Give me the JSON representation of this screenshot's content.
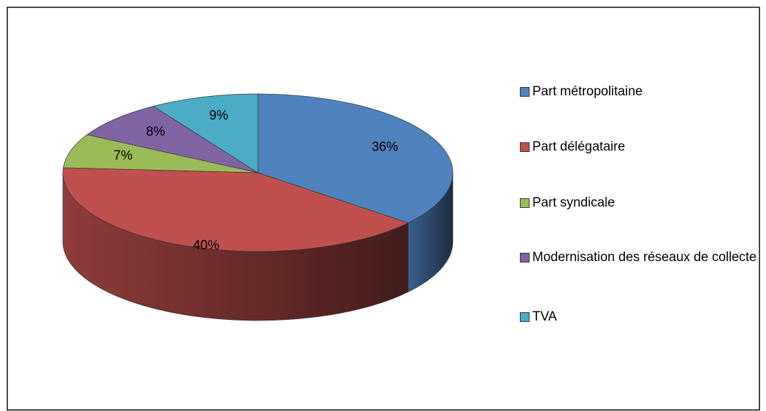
{
  "chart_data": {
    "type": "pie",
    "categories": [
      "Part métropolitaine",
      "Part délégataire",
      "Part syndicale",
      "Modernisation des réseaux de collecte",
      "TVA"
    ],
    "values": [
      36,
      40,
      7,
      8,
      9
    ],
    "value_labels": [
      "36%",
      "40%",
      "7%",
      "8%",
      "9%"
    ],
    "colors": [
      "#4f81bd",
      "#c0504d",
      "#9bbb59",
      "#8064a2",
      "#4bacc6"
    ],
    "legend": "right"
  }
}
